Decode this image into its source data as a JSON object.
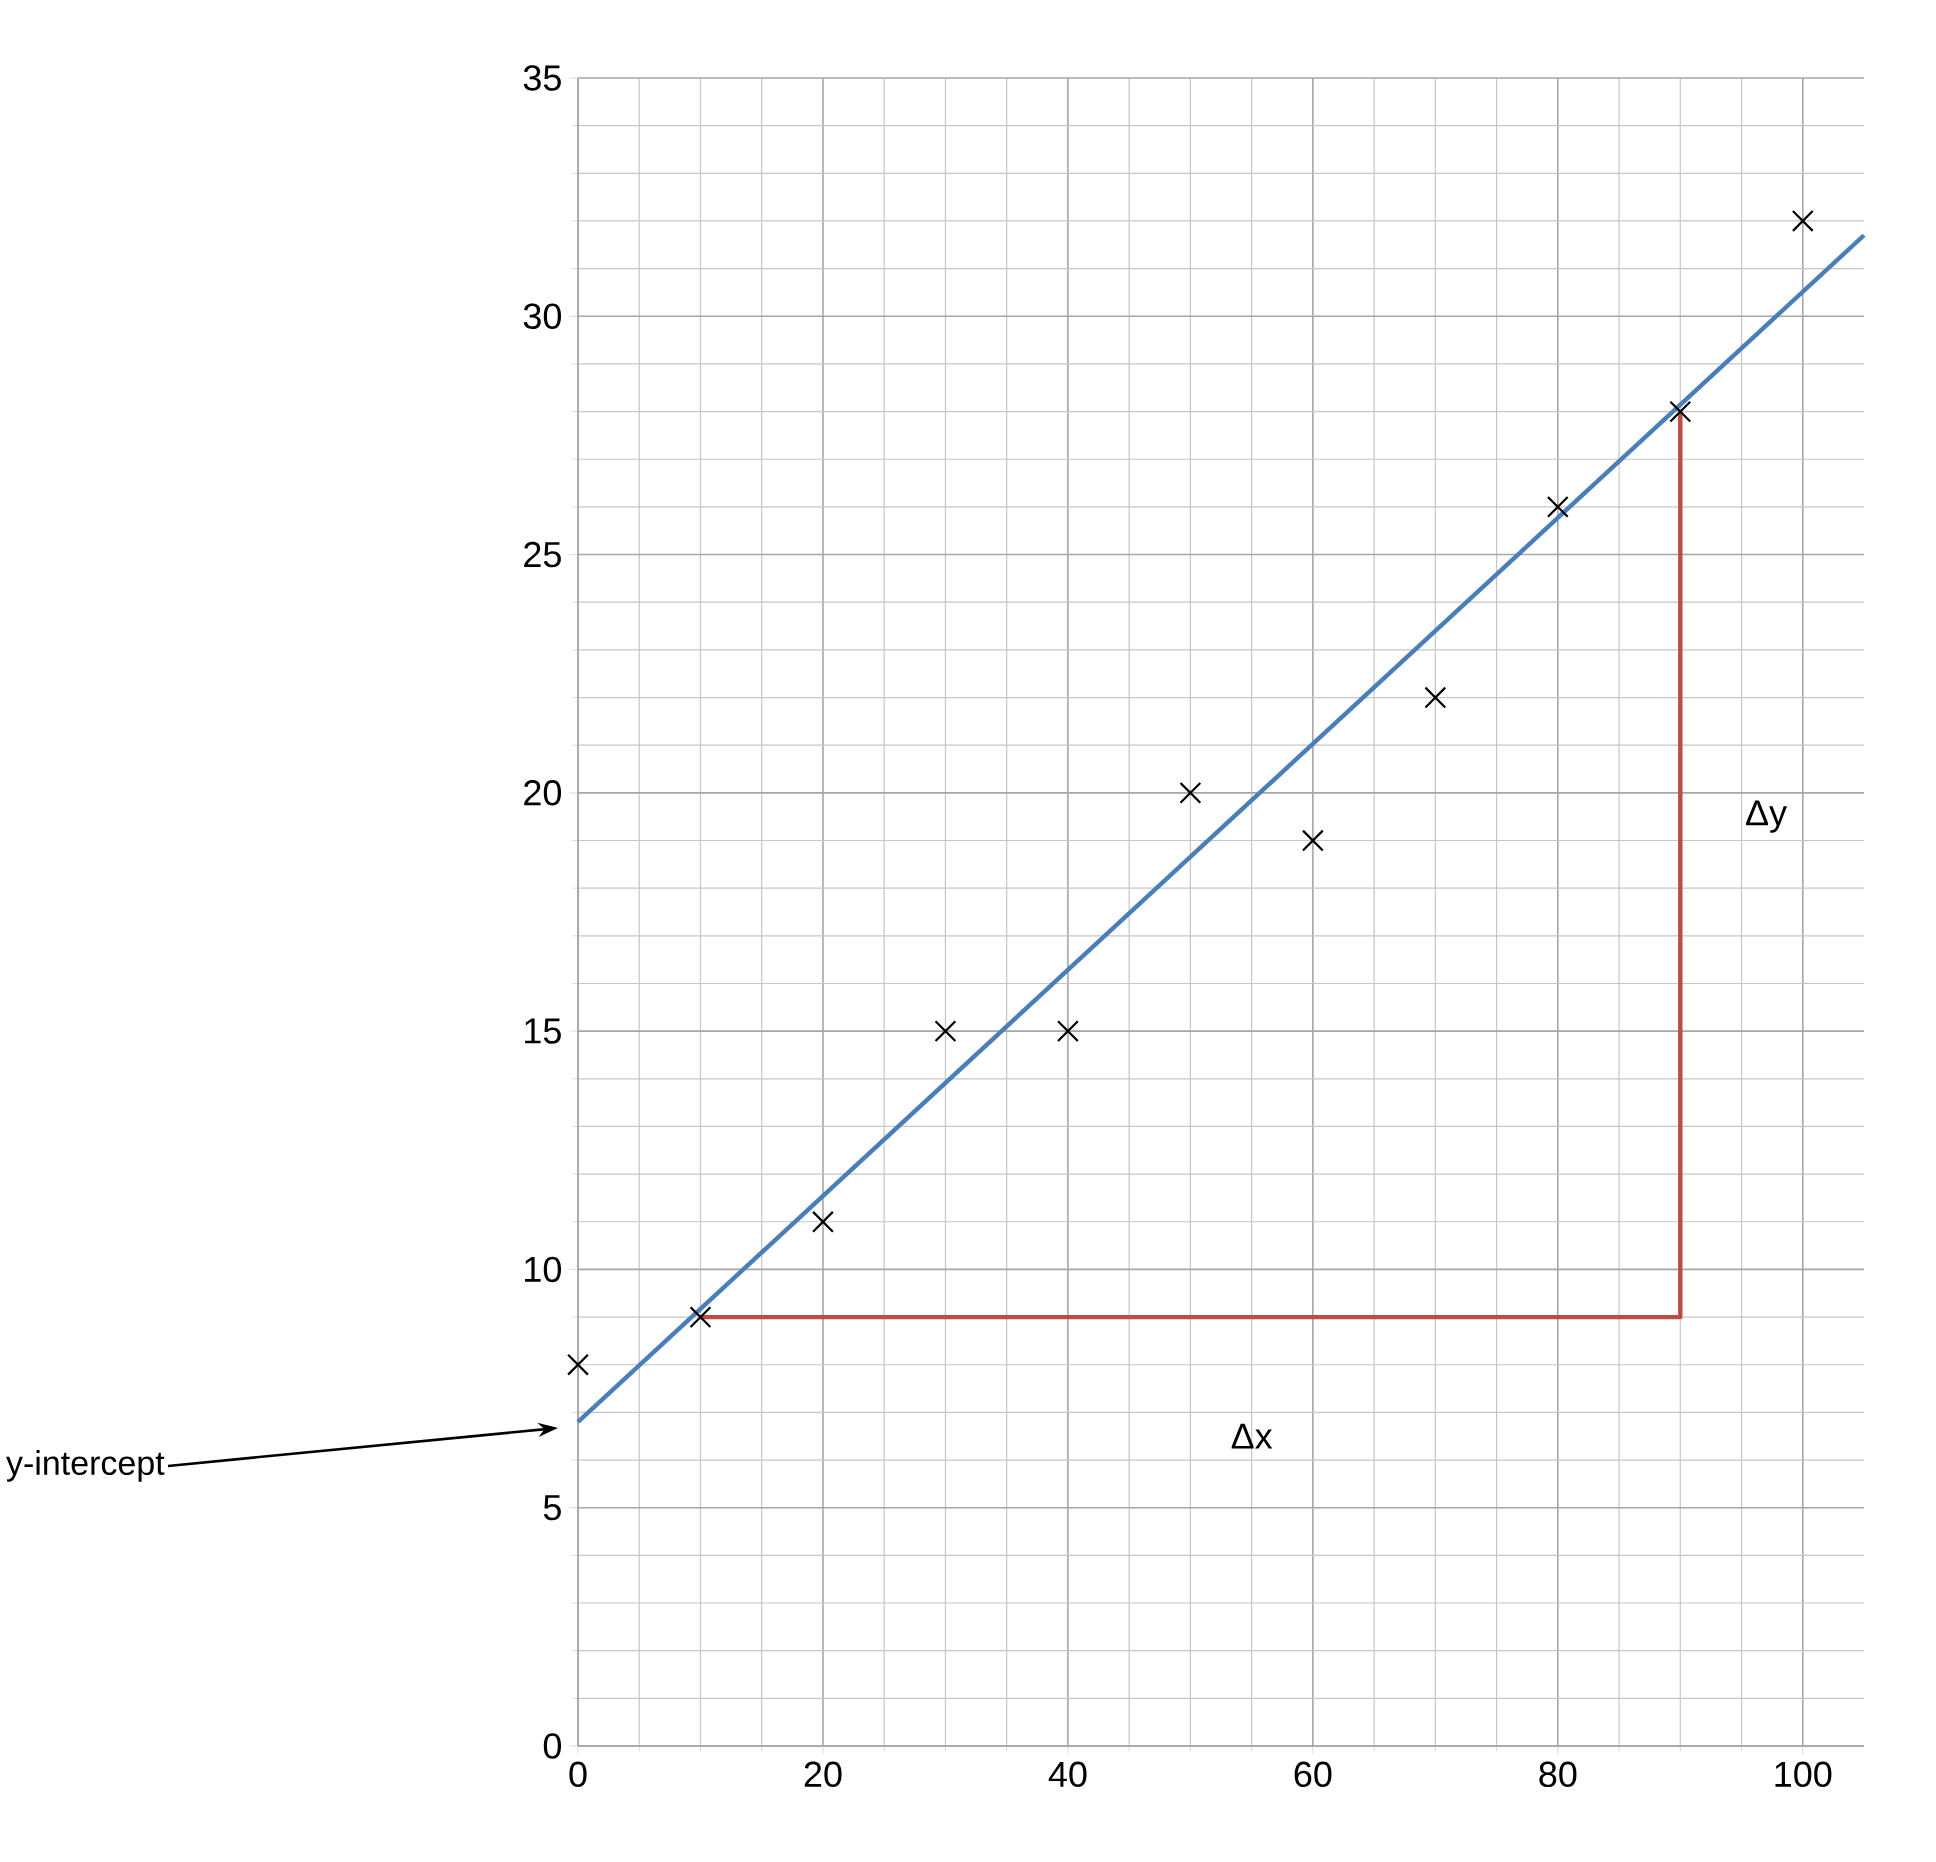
{
  "chart_data": {
    "type": "scatter",
    "xlim": [
      0,
      105
    ],
    "ylim": [
      0,
      35
    ],
    "xticks": [
      0,
      20,
      40,
      60,
      80,
      100
    ],
    "yticks": [
      0,
      5,
      10,
      15,
      20,
      25,
      30,
      35
    ],
    "grid": true,
    "series": [
      {
        "marker": "cross",
        "color": "#000000",
        "x": [
          0,
          10,
          20,
          30,
          40,
          50,
          60,
          70,
          80,
          90,
          100
        ],
        "values": [
          8,
          9,
          11,
          15,
          15,
          20,
          19,
          22,
          26,
          28,
          32
        ]
      },
      {
        "type": "line",
        "marker": "none",
        "color": "#4a7ebb",
        "x": [
          0,
          105
        ],
        "values": [
          6.8,
          31.7
        ]
      },
      {
        "type": "line",
        "marker": "none",
        "color": "#be4b48",
        "x": [
          10,
          90,
          90
        ],
        "values": [
          9,
          9,
          28
        ]
      }
    ],
    "annotations": [
      "Δx",
      "Δy",
      "y-intercept"
    ]
  }
}
